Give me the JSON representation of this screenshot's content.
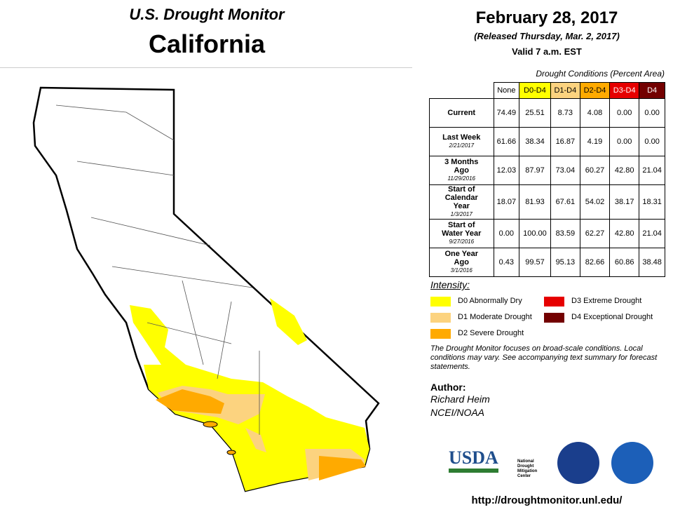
{
  "header": {
    "title": "U.S. Drought Monitor",
    "state": "California",
    "date": "February 28, 2017",
    "released": "(Released Thursday, Mar. 2, 2017)",
    "valid": "Valid 7 a.m. EST"
  },
  "table": {
    "caption": "Drought Conditions (Percent Area)",
    "columns": [
      {
        "label": "None",
        "color": "#ffffff"
      },
      {
        "label": "D0-D4",
        "color": "#ffff00"
      },
      {
        "label": "D1-D4",
        "color": "#fcd37f"
      },
      {
        "label": "D2-D4",
        "color": "#ffaa00"
      },
      {
        "label": "D3-D4",
        "color": "#e60000"
      },
      {
        "label": "D4",
        "color": "#730000"
      }
    ],
    "rows": [
      {
        "label": "Current",
        "date": null,
        "values": [
          "74.49",
          "25.51",
          "8.73",
          "4.08",
          "0.00",
          "0.00"
        ]
      },
      {
        "label": "Last Week",
        "date": "2/21/2017",
        "values": [
          "61.66",
          "38.34",
          "16.87",
          "4.19",
          "0.00",
          "0.00"
        ]
      },
      {
        "label": "3 Months Ago",
        "date": "11/29/2016",
        "values": [
          "12.03",
          "87.97",
          "73.04",
          "60.27",
          "42.80",
          "21.04"
        ]
      },
      {
        "label": "Start of Calendar Year",
        "date": "1/3/2017",
        "values": [
          "18.07",
          "81.93",
          "67.61",
          "54.02",
          "38.17",
          "18.31"
        ]
      },
      {
        "label": "Start of Water Year",
        "date": "9/27/2016",
        "values": [
          "0.00",
          "100.00",
          "83.59",
          "62.27",
          "42.80",
          "21.04"
        ]
      },
      {
        "label": "One Year Ago",
        "date": "3/1/2016",
        "values": [
          "0.43",
          "99.57",
          "95.13",
          "82.66",
          "60.86",
          "38.48"
        ]
      }
    ]
  },
  "legend": {
    "title": "Intensity:",
    "items": [
      {
        "label": "D0 Abnormally Dry",
        "color": "#ffff00"
      },
      {
        "label": "D1 Moderate Drought",
        "color": "#fcd37f"
      },
      {
        "label": "D2 Severe Drought",
        "color": "#ffaa00"
      },
      {
        "label": "D3 Extreme Drought",
        "color": "#e60000"
      },
      {
        "label": "D4 Exceptional Drought",
        "color": "#730000"
      }
    ]
  },
  "note": "The Drought Monitor focuses on broad-scale conditions. Local conditions may vary. See accompanying text summary for forecast statements.",
  "author": {
    "heading": "Author:",
    "name": "Richard Heim",
    "org": "NCEI/NOAA"
  },
  "logos": {
    "usda": "USDA",
    "ndmc": [
      "National",
      "Drought",
      "Mitigation",
      "Center"
    ]
  },
  "url": "http://droughtmonitor.unl.edu/"
}
